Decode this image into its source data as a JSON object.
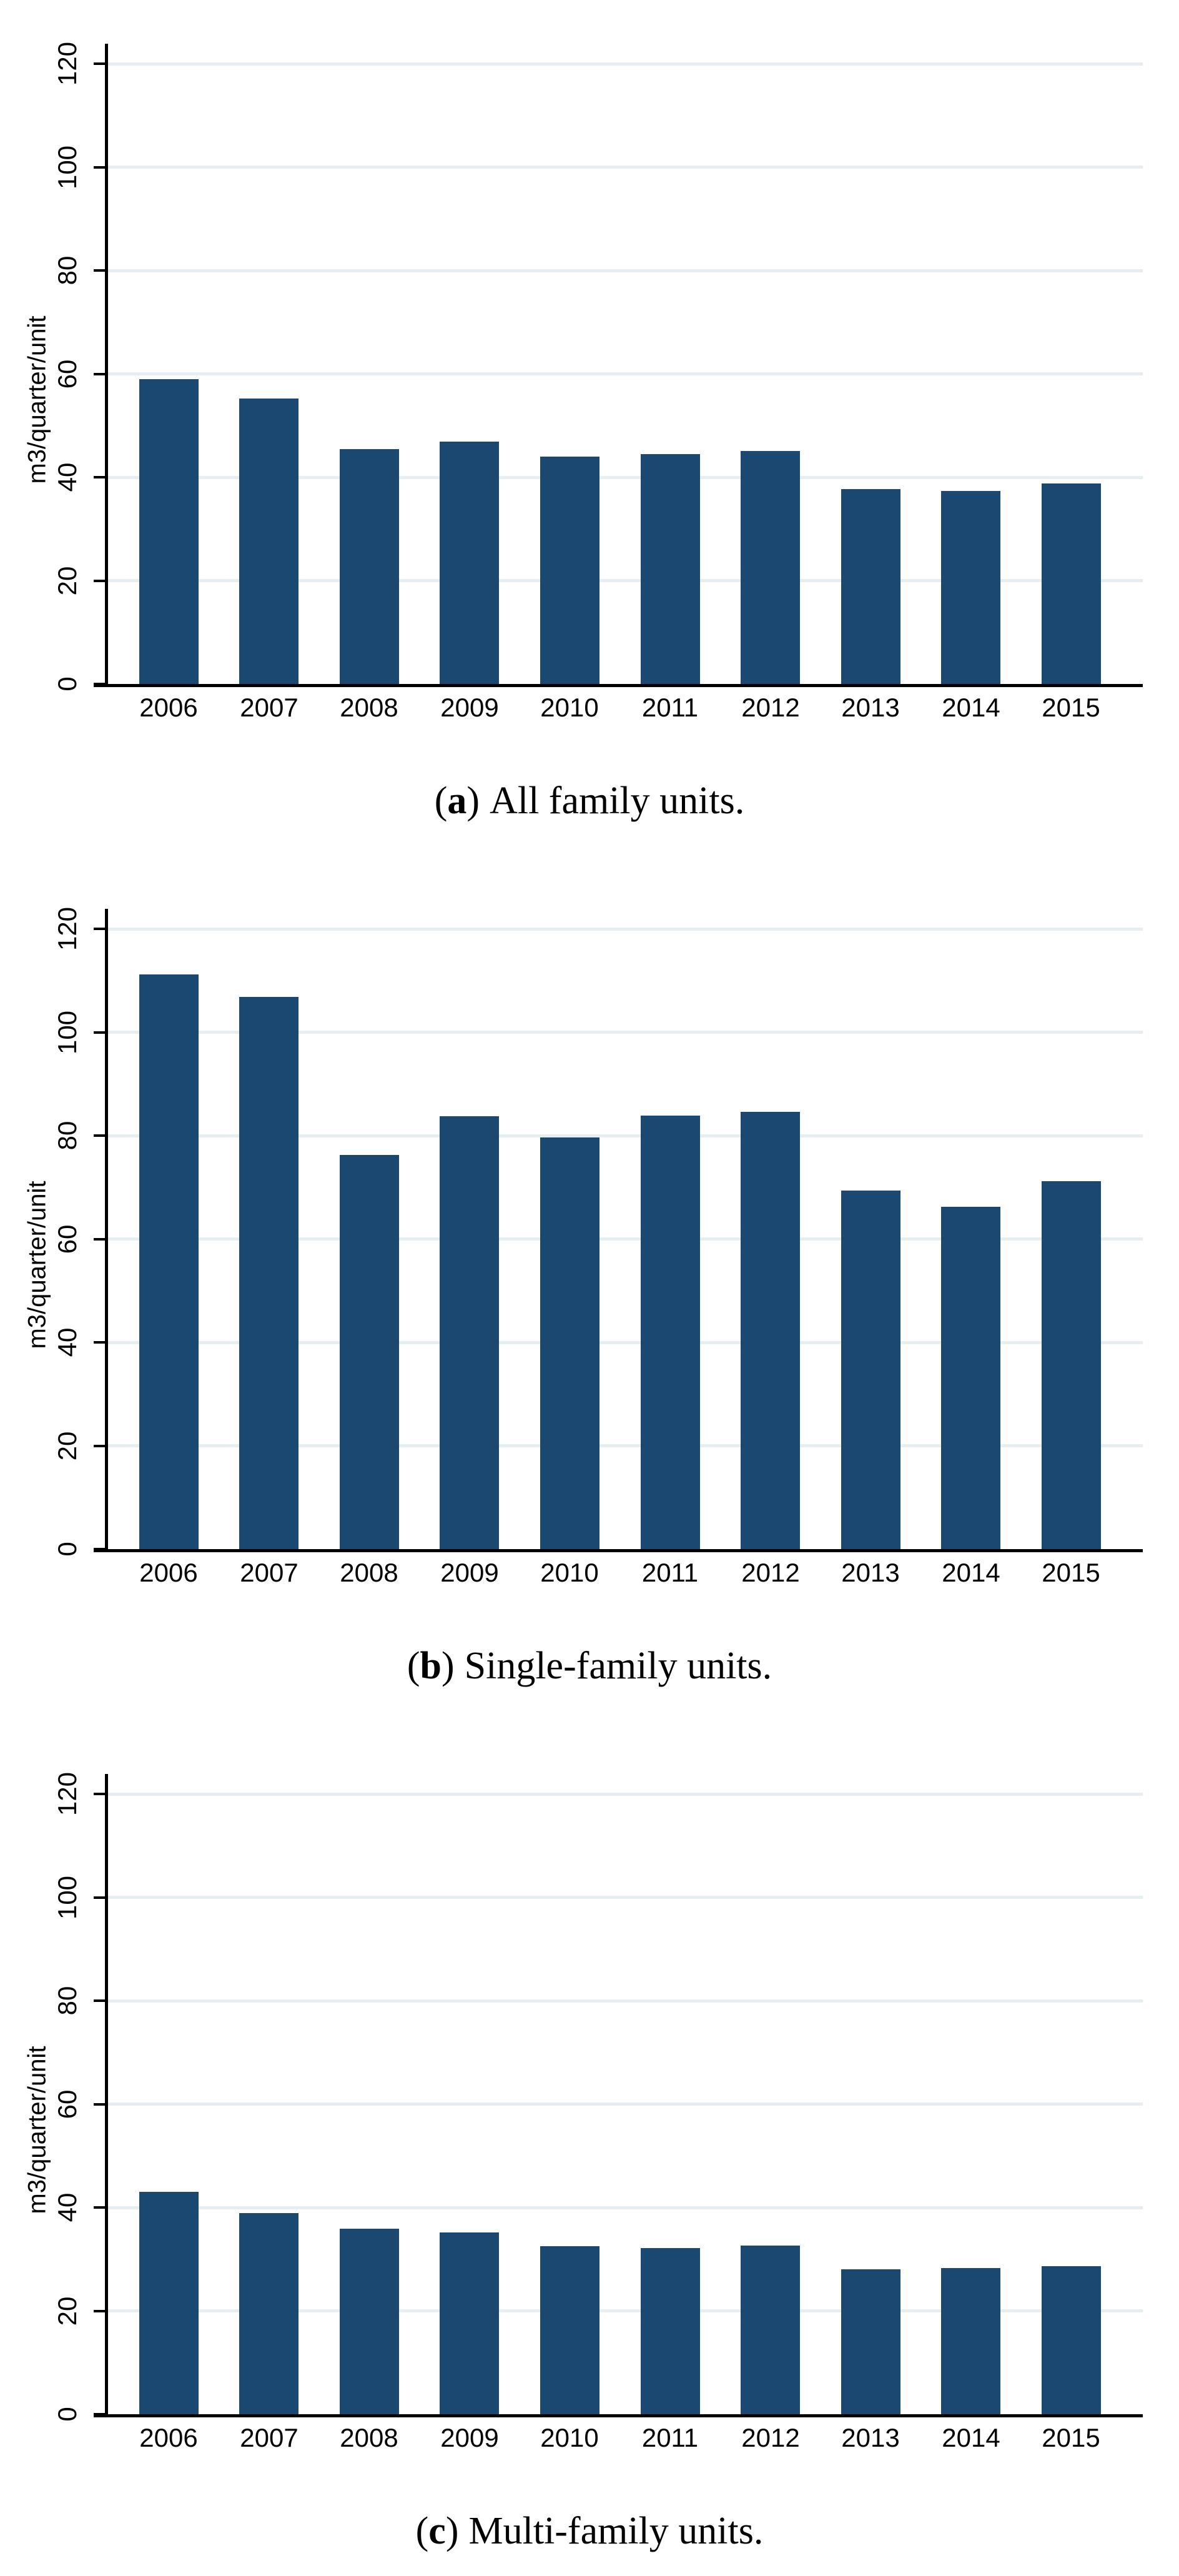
{
  "figure": {
    "background": "#ffffff",
    "bar_color": "#1b4870",
    "grid_color": "#e7eef1",
    "axis_color": "#000000",
    "caption_paren_open": "(",
    "caption_paren_close": ")"
  },
  "chart_data": [
    {
      "type": "bar",
      "panel": "a",
      "caption_letter": "a",
      "caption_text": "All family units.",
      "categories": [
        "2006",
        "2007",
        "2008",
        "2009",
        "2010",
        "2011",
        "2012",
        "2013",
        "2014",
        "2015"
      ],
      "values": [
        59.0,
        55.2,
        45.4,
        46.9,
        44.0,
        44.5,
        45.1,
        37.7,
        37.3,
        38.8
      ],
      "xlabel": "",
      "ylabel": "m3/quarter/unit",
      "ylim": [
        0,
        120
      ],
      "yticks": [
        0,
        20,
        40,
        60,
        80,
        100,
        120
      ],
      "grid": true,
      "legend": "none"
    },
    {
      "type": "bar",
      "panel": "b",
      "caption_letter": "b",
      "caption_text": "Single-family units.",
      "categories": [
        "2006",
        "2007",
        "2008",
        "2009",
        "2010",
        "2011",
        "2012",
        "2013",
        "2014",
        "2015"
      ],
      "values": [
        111.2,
        106.8,
        76.3,
        83.8,
        79.6,
        83.9,
        84.6,
        69.4,
        66.2,
        71.2
      ],
      "xlabel": "",
      "ylabel": "m3/quarter/unit",
      "ylim": [
        0,
        120
      ],
      "yticks": [
        0,
        20,
        40,
        60,
        80,
        100,
        120
      ],
      "grid": true,
      "legend": "none"
    },
    {
      "type": "bar",
      "panel": "c",
      "caption_letter": "c",
      "caption_text": "Multi-family units.",
      "categories": [
        "2006",
        "2007",
        "2008",
        "2009",
        "2010",
        "2011",
        "2012",
        "2013",
        "2014",
        "2015"
      ],
      "values": [
        43.0,
        38.9,
        35.9,
        35.2,
        32.5,
        32.1,
        32.6,
        28.0,
        28.3,
        28.7
      ],
      "xlabel": "",
      "ylabel": "m3/quarter/unit",
      "ylim": [
        0,
        120
      ],
      "yticks": [
        0,
        20,
        40,
        60,
        80,
        100,
        120
      ],
      "grid": true,
      "legend": "none"
    }
  ]
}
